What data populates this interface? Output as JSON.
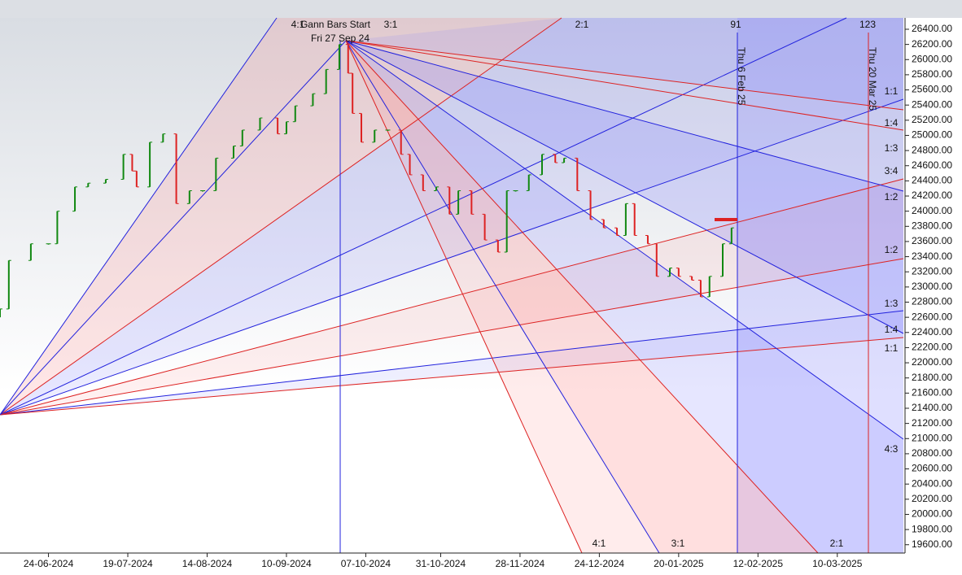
{
  "chart_data": {
    "type": "ohlc",
    "x": [
      0,
      2,
      7,
      11,
      13,
      17,
      20,
      24,
      28,
      30,
      31,
      34,
      37,
      40,
      43,
      46,
      49,
      53,
      55,
      59,
      63,
      65,
      67,
      71,
      74,
      77,
      79,
      80,
      82,
      85,
      88,
      91,
      93,
      96,
      99,
      102,
      104,
      107,
      110,
      113,
      115,
      117,
      120,
      123,
      126,
      128,
      131,
      134,
      137,
      140,
      142,
      144,
      147,
      149,
      152,
      154,
      157,
      159,
      161,
      164,
      166
    ],
    "open": [
      22600,
      22710,
      23350,
      23570,
      23570,
      24000,
      24320,
      24370,
      24420,
      24750,
      24530,
      24320,
      24910,
      25020,
      24100,
      24270,
      24270,
      24700,
      24860,
      25070,
      25230,
      25020,
      25180,
      25390,
      25550,
      25870,
      26200,
      25820,
      25290,
      24910,
      25070,
      25070,
      24750,
      24480,
      24270,
      24320,
      23960,
      24270,
      23960,
      23620,
      23460,
      24270,
      24270,
      24480,
      24750,
      24640,
      24700,
      24270,
      23890,
      23780,
      23680,
      24100,
      23680,
      23570,
      23140,
      23250,
      23140,
      23090,
      22870,
      23140,
      23570
    ],
    "close": [
      22710,
      23350,
      23570,
      23570,
      24000,
      24320,
      24370,
      24420,
      24750,
      24530,
      24320,
      24910,
      25020,
      24100,
      24270,
      24270,
      24700,
      24860,
      25070,
      25230,
      25020,
      25180,
      25390,
      25550,
      25870,
      26200,
      25820,
      25290,
      24910,
      25070,
      25070,
      24750,
      24480,
      24270,
      24320,
      23960,
      24270,
      23960,
      23620,
      23460,
      24270,
      24270,
      24480,
      24750,
      24640,
      24700,
      24270,
      23890,
      23780,
      23680,
      24100,
      23680,
      23570,
      23140,
      23250,
      23140,
      23090,
      22870,
      23140,
      23570,
      23780
    ],
    "up_color": "#118811",
    "down_color": "#dd2222",
    "xlim": [
      0,
      205
    ],
    "xticks": [
      {
        "value": 11,
        "label": "24-06-2024"
      },
      {
        "value": 29,
        "label": "19-07-2024"
      },
      {
        "value": 47,
        "label": "14-08-2024"
      },
      {
        "value": 65,
        "label": "10-09-2024"
      },
      {
        "value": 83,
        "label": "07-10-2024"
      },
      {
        "value": 100,
        "label": "31-10-2024"
      },
      {
        "value": 118,
        "label": "28-11-2024"
      },
      {
        "value": 136,
        "label": "24-12-2024"
      },
      {
        "value": 154,
        "label": "20-01-2025"
      },
      {
        "value": 172,
        "label": "12-02-2025"
      },
      {
        "value": 190,
        "label": "10-03-2025"
      }
    ],
    "ylim": [
      19490,
      26550
    ],
    "yticks": [
      {
        "value": 19600,
        "label": "19600.00"
      },
      {
        "value": 19800,
        "label": "19800.00"
      },
      {
        "value": 20000,
        "label": "20000.00"
      },
      {
        "value": 20200,
        "label": "20200.00"
      },
      {
        "value": 20400,
        "label": "20400.00"
      },
      {
        "value": 20600,
        "label": "20600.00"
      },
      {
        "value": 20800,
        "label": "20800.00"
      },
      {
        "value": 21000,
        "label": "21000.00"
      },
      {
        "value": 21200,
        "label": "21200.00"
      },
      {
        "value": 21400,
        "label": "21400.00"
      },
      {
        "value": 21600,
        "label": "21600.00"
      },
      {
        "value": 21800,
        "label": "21800.00"
      },
      {
        "value": 22000,
        "label": "22000.00"
      },
      {
        "value": 22200,
        "label": "22200.00"
      },
      {
        "value": 22400,
        "label": "22400.00"
      },
      {
        "value": 22600,
        "label": "22600.00"
      },
      {
        "value": 22800,
        "label": "22800.00"
      },
      {
        "value": 23000,
        "label": "23000.00"
      },
      {
        "value": 23200,
        "label": "23200.00"
      },
      {
        "value": 23400,
        "label": "23400.00"
      },
      {
        "value": 23600,
        "label": "23600.00"
      },
      {
        "value": 23800,
        "label": "23800.00"
      },
      {
        "value": 24000,
        "label": "24000.00"
      },
      {
        "value": 24200,
        "label": "24200.00"
      },
      {
        "value": 24400,
        "label": "24400.00"
      },
      {
        "value": 24600,
        "label": "24600.00"
      },
      {
        "value": 24800,
        "label": "24800.00"
      },
      {
        "value": 25000,
        "label": "25000.00"
      },
      {
        "value": 25200,
        "label": "25200.00"
      },
      {
        "value": 25400,
        "label": "25400.00"
      },
      {
        "value": 25600,
        "label": "25600.00"
      },
      {
        "value": 25800,
        "label": "25800.00"
      },
      {
        "value": 26000,
        "label": "26000.00"
      },
      {
        "value": 26200,
        "label": "26200.00"
      },
      {
        "value": 26400,
        "label": "26400.00"
      }
    ],
    "annotations": [
      "4:1",
      "Gann Bars Start",
      "3:1",
      "Fri 27 Sep 24",
      "2:1",
      "91",
      "123",
      "Thu 6 Feb 25",
      "Thu 20 Mar 25",
      "1:1",
      "1:4",
      "1:3",
      "3:4",
      "1:2",
      "1:2",
      "1:3",
      "1:4",
      "1:1",
      "4:3",
      "4:1",
      "3:1",
      "2:1"
    ]
  }
}
